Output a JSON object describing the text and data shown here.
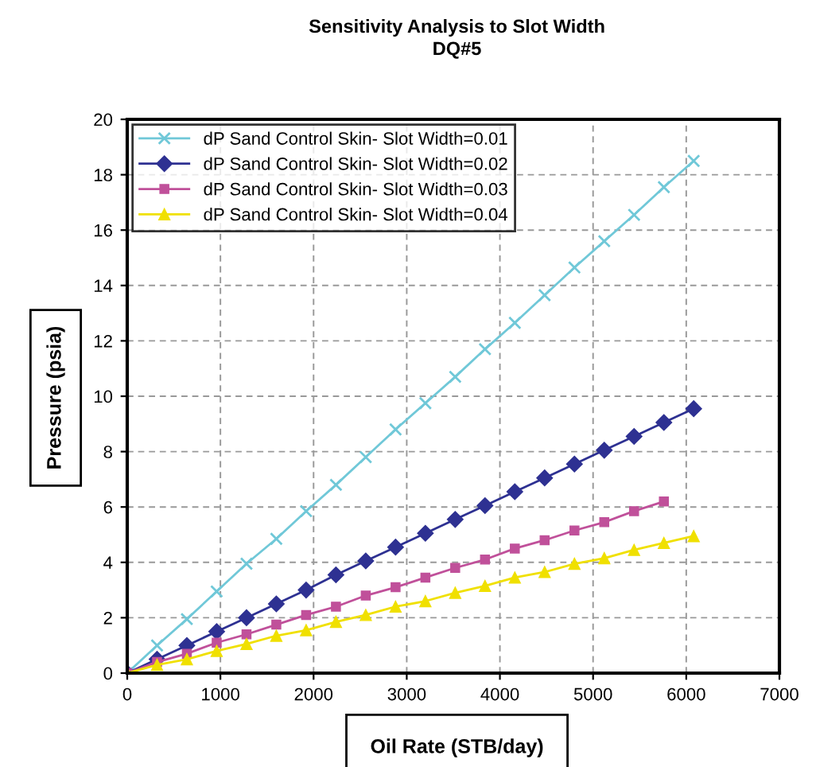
{
  "chart_data": {
    "type": "line",
    "title": "Sensitivity Analysis to Slot Width",
    "subtitle": "DQ#5",
    "xlabel": "Oil Rate (STB/day)",
    "ylabel": "Pressure (psia)",
    "x": [
      0,
      320,
      640,
      960,
      1280,
      1600,
      1920,
      2240,
      2560,
      2880,
      3200,
      3520,
      3840,
      4160,
      4480,
      4800,
      5120,
      5440,
      5760,
      6080
    ],
    "series": [
      {
        "name": "dP Sand Control Skin- Slot Width=0.01",
        "color": "#70c8d8",
        "marker": "cross",
        "values": [
          0,
          1,
          1.95,
          2.95,
          3.95,
          4.85,
          5.85,
          6.8,
          7.8,
          8.8,
          9.75,
          10.7,
          11.7,
          12.65,
          13.65,
          14.65,
          15.6,
          16.55,
          17.55,
          18.5
        ]
      },
      {
        "name": "dP Sand Control Skin- Slot Width=0.02",
        "color": "#2e3192",
        "marker": "diamond",
        "values": [
          0,
          0.5,
          1.0,
          1.5,
          2.0,
          2.5,
          3.0,
          3.55,
          4.05,
          4.55,
          5.05,
          5.55,
          6.05,
          6.55,
          7.05,
          7.55,
          8.05,
          8.55,
          9.05,
          9.55
        ]
      },
      {
        "name": "dP Sand Control Skin- Slot Width=0.03",
        "color": "#c0509a",
        "marker": "square",
        "values": [
          0,
          0.4,
          0.7,
          1.1,
          1.4,
          1.75,
          2.1,
          2.4,
          2.8,
          3.1,
          3.45,
          3.8,
          4.1,
          4.5,
          4.8,
          5.15,
          5.45,
          5.85,
          6.2,
          null
        ]
      },
      {
        "name": "dP Sand Control Skin- Slot Width=0.04",
        "color": "#f0e000",
        "marker": "triangle",
        "values": [
          0,
          0.3,
          0.5,
          0.8,
          1.05,
          1.35,
          1.55,
          1.85,
          2.1,
          2.4,
          2.6,
          2.9,
          3.15,
          3.45,
          3.65,
          3.95,
          4.15,
          4.45,
          4.7,
          4.95
        ]
      }
    ],
    "xlim": [
      0,
      7000
    ],
    "xticks": [
      0,
      1000,
      2000,
      3000,
      4000,
      5000,
      6000,
      7000
    ],
    "ylim": [
      0,
      20
    ],
    "yticks": [
      0,
      2,
      4,
      6,
      8,
      10,
      12,
      14,
      16,
      18,
      20
    ],
    "grid": true,
    "legend": "top left",
    "line_style": "solid"
  }
}
